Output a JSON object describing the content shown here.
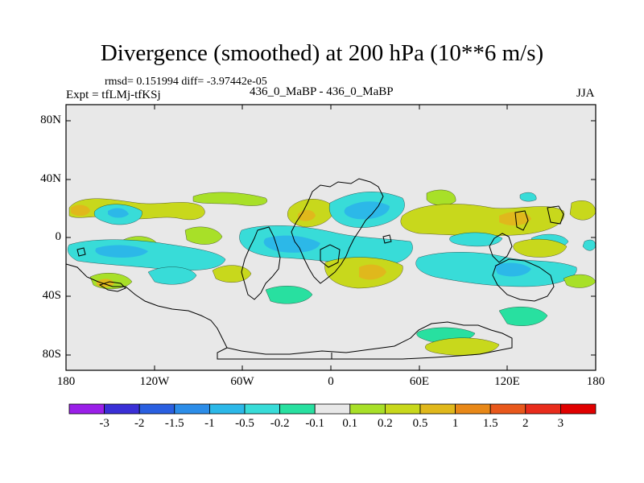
{
  "title": "Divergence (smoothed) at 200 hPa (10**6 m/s)",
  "stats": "rmsd= 0.151994 diff= -3.97442e-05",
  "expt": "Expt = tfLMj-tfKSj",
  "runs": "436_0_MaBP - 436_0_MaBP",
  "season": "JJA",
  "y_ticks": [
    "80N",
    "40N",
    "0",
    "40S",
    "80S"
  ],
  "x_ticks": [
    "180",
    "120W",
    "60W",
    "0",
    "60E",
    "120E",
    "180"
  ],
  "colorbar": {
    "labels": [
      "-3",
      "-2",
      "-1.5",
      "-1",
      "-0.5",
      "-0.2",
      "-0.1",
      "0.1",
      "0.2",
      "0.5",
      "1",
      "1.5",
      "2",
      "3"
    ],
    "colors": [
      "#9a1fe8",
      "#3a2fd6",
      "#2a5fe0",
      "#2c8de8",
      "#2cb8e8",
      "#38dcd8",
      "#28e0a0",
      "#e8e8e8",
      "#a8e028",
      "#c8d81c",
      "#e0b81c",
      "#e88818",
      "#e8581c",
      "#e82c1c",
      "#e00000"
    ]
  },
  "map": {
    "background": "#e8e8e8",
    "land_stroke": "#000000"
  }
}
